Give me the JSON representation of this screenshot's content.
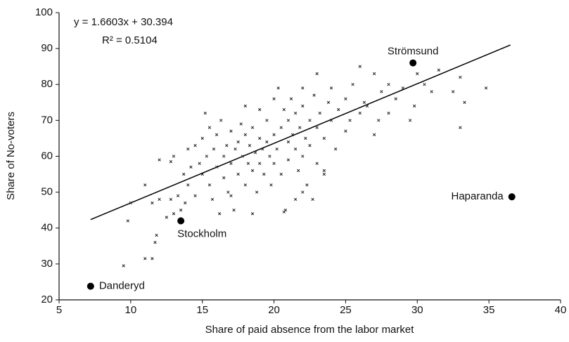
{
  "chart_data": {
    "type": "scatter",
    "xlabel": "Share of paid absence from the labor market",
    "ylabel": "Share of No-voters",
    "equation": "y = 1.6603x + 30.394",
    "r_squared": "R² = 0.5104",
    "xlim": [
      5,
      40
    ],
    "xticks": [
      5,
      10,
      15,
      20,
      25,
      30,
      35,
      40
    ],
    "ylim": [
      20,
      100
    ],
    "yticks": [
      20,
      30,
      40,
      50,
      60,
      70,
      80,
      90,
      100
    ],
    "trendline": {
      "slope": 1.6603,
      "intercept": 30.394,
      "x_range": [
        7.2,
        36.5
      ]
    },
    "series": [
      {
        "color": "#222",
        "x": [
          9.5,
          9.8,
          10,
          11,
          11,
          11.5,
          11.5,
          11.7,
          11.8,
          12,
          12,
          12.5,
          12.8,
          12.8,
          13,
          13,
          13.3,
          13.5,
          13.7,
          13.8,
          14,
          14,
          14.2,
          14.5,
          14.5,
          14.8,
          15,
          15,
          15.2,
          15.3,
          15.5,
          15.5,
          15.7,
          15.8,
          16,
          16,
          16.2,
          16.3,
          16.5,
          16.5,
          16.7,
          16.8,
          17,
          17,
          17.2,
          17.3,
          17.5,
          17.5,
          17.7,
          17.8,
          18,
          18,
          18,
          18.2,
          18.3,
          18.5,
          18.5,
          18.7,
          18.8,
          19,
          19,
          19,
          19.2,
          19.3,
          19.5,
          19.5,
          19.7,
          19.8,
          20,
          20,
          20,
          20.2,
          20.3,
          20.5,
          20.5,
          20.7,
          20.8,
          21,
          21,
          21,
          21.2,
          21.3,
          21.5,
          21.5,
          21.7,
          21.8,
          22,
          22,
          22,
          22.2,
          22.3,
          22.5,
          22.5,
          22.7,
          22.8,
          23,
          23,
          23,
          23.2,
          23.5,
          23.5,
          23.8,
          24,
          24,
          24.3,
          24.5,
          25,
          25,
          25.3,
          25.5,
          26,
          26,
          26.3,
          26.5,
          27,
          27,
          27.3,
          27.5,
          28,
          28,
          28.5,
          29,
          29.5,
          29.8,
          30,
          30.5,
          31,
          31.5,
          32.5,
          33,
          33,
          33.3,
          34.8,
          17,
          18.5,
          20.7,
          22,
          23.5,
          21.5
        ],
        "values": [
          29.5,
          42,
          47,
          31.5,
          52,
          31.5,
          47,
          36,
          38,
          59,
          48,
          43,
          58.5,
          48,
          60,
          44,
          49,
          45,
          55,
          47,
          62,
          52,
          57,
          49,
          63,
          58,
          55,
          65,
          72,
          60,
          68,
          52,
          48,
          62,
          57,
          66,
          44,
          70,
          60,
          54,
          63,
          50,
          67,
          58,
          45,
          62,
          64,
          55,
          69,
          60,
          66,
          52,
          74,
          58,
          63,
          68,
          56,
          61,
          50,
          65,
          73,
          58,
          62,
          55,
          64,
          70,
          60,
          52,
          66,
          76,
          58,
          62,
          79,
          68,
          55,
          73,
          45,
          64,
          70,
          59,
          76,
          66,
          62,
          72,
          56,
          68,
          74,
          60,
          79,
          65,
          52,
          70,
          63,
          48,
          77,
          68,
          83,
          58,
          72,
          65,
          56,
          75,
          70,
          79,
          62,
          73,
          76,
          67,
          70,
          80,
          72,
          85,
          75,
          74,
          83,
          66,
          70,
          78,
          80,
          72,
          76,
          79,
          70,
          74,
          83,
          80,
          78,
          84,
          78,
          68,
          82,
          75,
          79,
          49,
          44,
          44.5,
          50,
          55,
          48
        ]
      },
      {
        "color": "#000",
        "labels": [
          "Strömsund",
          "Haparanda",
          "Stockholm",
          "Danderyd"
        ],
        "x": [
          29.7,
          36.6,
          13.5,
          7.2
        ],
        "values": [
          86,
          48.7,
          42,
          23.8
        ]
      }
    ]
  }
}
